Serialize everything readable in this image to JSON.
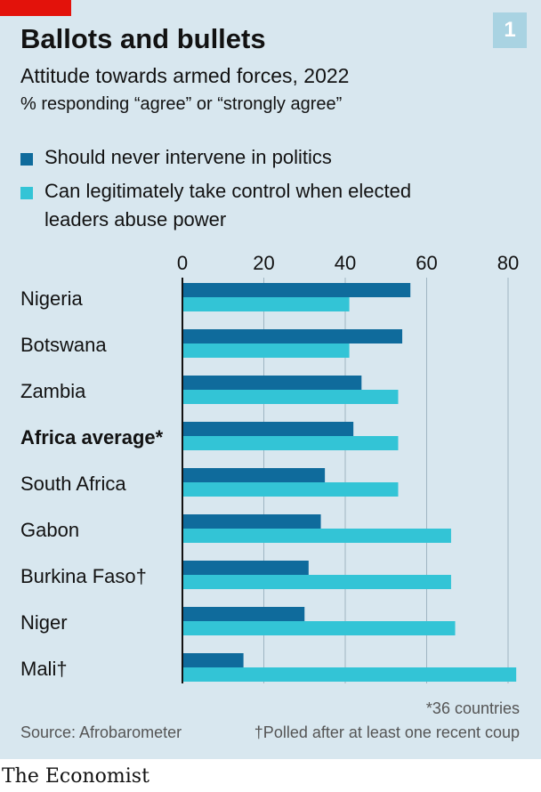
{
  "header": {
    "badge": "1",
    "title": "Ballots and bullets",
    "subtitle": "Attitude towards armed forces, 2022",
    "units": "% responding “agree” or “strongly agree”"
  },
  "colors": {
    "series1": "#0f6b9c",
    "series2": "#33c4d6",
    "grid": "#9fb5c2",
    "axis": "#121212",
    "panel": "#d8e7ef",
    "accent": "#e3120b"
  },
  "chart_data": {
    "type": "bar",
    "orientation": "horizontal",
    "categories": [
      "Nigeria",
      "Botswana",
      "Zambia",
      "Africa average*",
      "South Africa",
      "Gabon",
      "Burkina Faso†",
      "Niger",
      "Mali†"
    ],
    "emphasized_category": "Africa average*",
    "series": [
      {
        "name": "Should never intervene in politics",
        "values": [
          56,
          54,
          44,
          42,
          35,
          34,
          31,
          30,
          15
        ]
      },
      {
        "name": "Can legitimately take control when elected leaders abuse power",
        "values": [
          41,
          41,
          53,
          53,
          53,
          66,
          66,
          67,
          82
        ]
      }
    ],
    "xlim": [
      0,
      82
    ],
    "xticks": [
      0,
      20,
      40,
      60,
      80
    ],
    "grid": true,
    "legend_position": "top-left"
  },
  "footer": {
    "note_countries": "*36 countries",
    "source": "Source: Afrobarometer",
    "note_coup": "†Polled after at least one recent coup",
    "brand": "The Economist"
  }
}
